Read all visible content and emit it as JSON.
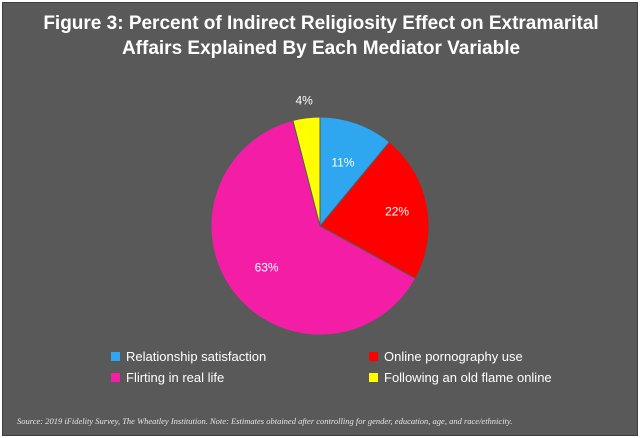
{
  "chart_data": {
    "type": "pie",
    "title": "Figure 3: Percent of Indirect Religiosity Effect on Extramarital Affairs Explained By Each Mediator Variable",
    "title_lines": [
      "Figure 3: Percent of Indirect Religiosity Effect on Extramarital",
      "Affairs Explained By Each Mediator Variable"
    ],
    "slices": [
      {
        "label": "Relationship satisfaction",
        "value": 11,
        "value_label": "11%",
        "color": "#2ea7f0"
      },
      {
        "label": "Online pornography use",
        "value": 22,
        "value_label": "22%",
        "color": "#ff0000"
      },
      {
        "label": "Flirting in real life",
        "value": 63,
        "value_label": "63%",
        "color": "#f41ea6"
      },
      {
        "label": "Following an old flame online",
        "value": 4,
        "value_label": "4%",
        "color": "#ffff00"
      }
    ],
    "legend_position": "bottom",
    "source_note": "Source: 2019 iFidelity Survey, The Wheatley Institution. Note: Estimates obtained after controlling for gender, education, age, and race/ethnicity."
  }
}
